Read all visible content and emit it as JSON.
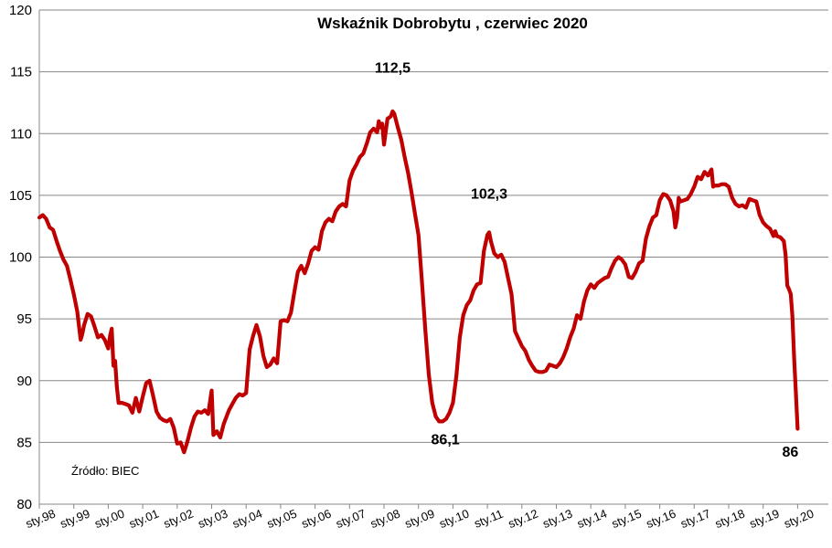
{
  "chart_data": {
    "type": "line",
    "title": "Wskaźnik Dobrobytu , czerwiec 2020",
    "xlabel": "",
    "ylabel": "",
    "ylim": [
      80,
      120
    ],
    "yticks": [
      "80",
      "85",
      "90",
      "95",
      "100",
      "105",
      "110",
      "115",
      "120"
    ],
    "xticks": [
      "sty.98",
      "sty.99",
      "sty.00",
      "sty.01",
      "sty.02",
      "sty.03",
      "sty.04",
      "sty.05",
      "sty.06",
      "sty.07",
      "sty.08",
      "sty.09",
      "sty.10",
      "sty.11",
      "sty.12",
      "sty.13",
      "sty.14",
      "sty.15",
      "sty.16",
      "sty.17",
      "sty.18",
      "sty.19",
      "sty.20"
    ],
    "grid": true,
    "legend": "none",
    "series": [
      {
        "name": "Wskaźnik Dobrobytu",
        "color": "#C00000",
        "points": [
          [
            0.0,
            103.2
          ],
          [
            0.1,
            103.4
          ],
          [
            0.2,
            103.1
          ],
          [
            0.3,
            102.4
          ],
          [
            0.4,
            102.2
          ],
          [
            0.5,
            101.3
          ],
          [
            0.6,
            100.5
          ],
          [
            0.7,
            99.8
          ],
          [
            0.8,
            99.3
          ],
          [
            0.9,
            98.2
          ],
          [
            1.0,
            97.0
          ],
          [
            1.1,
            95.6
          ],
          [
            1.2,
            93.3
          ],
          [
            1.25,
            93.8
          ],
          [
            1.3,
            94.5
          ],
          [
            1.4,
            95.4
          ],
          [
            1.5,
            95.2
          ],
          [
            1.6,
            94.4
          ],
          [
            1.7,
            93.5
          ],
          [
            1.8,
            93.7
          ],
          [
            1.9,
            93.3
          ],
          [
            2.0,
            92.6
          ],
          [
            2.05,
            93.6
          ],
          [
            2.1,
            94.2
          ],
          [
            2.15,
            91.2
          ],
          [
            2.2,
            91.6
          ],
          [
            2.25,
            89.5
          ],
          [
            2.3,
            88.2
          ],
          [
            2.4,
            88.2
          ],
          [
            2.5,
            88.1
          ],
          [
            2.6,
            88.0
          ],
          [
            2.7,
            87.4
          ],
          [
            2.8,
            88.6
          ],
          [
            2.9,
            87.5
          ],
          [
            3.0,
            88.7
          ],
          [
            3.1,
            89.8
          ],
          [
            3.2,
            90.0
          ],
          [
            3.3,
            88.8
          ],
          [
            3.4,
            87.5
          ],
          [
            3.5,
            87.0
          ],
          [
            3.6,
            86.8
          ],
          [
            3.7,
            86.7
          ],
          [
            3.8,
            86.9
          ],
          [
            3.9,
            86.2
          ],
          [
            4.0,
            84.9
          ],
          [
            4.1,
            85.0
          ],
          [
            4.2,
            84.2
          ],
          [
            4.3,
            85.1
          ],
          [
            4.4,
            86.2
          ],
          [
            4.5,
            87.1
          ],
          [
            4.6,
            87.5
          ],
          [
            4.7,
            87.4
          ],
          [
            4.8,
            87.6
          ],
          [
            4.9,
            87.3
          ],
          [
            5.0,
            89.2
          ],
          [
            5.05,
            85.6
          ],
          [
            5.15,
            85.9
          ],
          [
            5.25,
            85.4
          ],
          [
            5.35,
            86.5
          ],
          [
            5.5,
            87.6
          ],
          [
            5.6,
            88.1
          ],
          [
            5.7,
            88.6
          ],
          [
            5.8,
            88.9
          ],
          [
            5.9,
            88.8
          ],
          [
            6.0,
            89.0
          ],
          [
            6.1,
            92.5
          ],
          [
            6.2,
            93.6
          ],
          [
            6.3,
            94.5
          ],
          [
            6.4,
            93.6
          ],
          [
            6.5,
            92.0
          ],
          [
            6.6,
            91.1
          ],
          [
            6.7,
            91.3
          ],
          [
            6.8,
            91.8
          ],
          [
            6.9,
            91.4
          ],
          [
            7.0,
            94.8
          ],
          [
            7.1,
            94.9
          ],
          [
            7.2,
            94.8
          ],
          [
            7.3,
            95.5
          ],
          [
            7.4,
            97.2
          ],
          [
            7.5,
            98.8
          ],
          [
            7.6,
            99.3
          ],
          [
            7.7,
            98.7
          ],
          [
            7.8,
            99.5
          ],
          [
            7.9,
            100.5
          ],
          [
            8.0,
            100.8
          ],
          [
            8.1,
            100.6
          ],
          [
            8.2,
            102.1
          ],
          [
            8.3,
            102.8
          ],
          [
            8.4,
            103.1
          ],
          [
            8.5,
            102.9
          ],
          [
            8.6,
            103.7
          ],
          [
            8.7,
            104.1
          ],
          [
            8.8,
            104.3
          ],
          [
            8.9,
            104.1
          ],
          [
            9.0,
            106.2
          ],
          [
            9.1,
            107.0
          ],
          [
            9.2,
            107.5
          ],
          [
            9.3,
            108.1
          ],
          [
            9.4,
            108.4
          ],
          [
            9.5,
            109.2
          ],
          [
            9.6,
            110.1
          ],
          [
            9.7,
            110.4
          ],
          [
            9.8,
            110.1
          ],
          [
            9.85,
            111.0
          ],
          [
            9.9,
            110.5
          ],
          [
            9.95,
            110.8
          ],
          [
            10.0,
            109.1
          ],
          [
            10.1,
            111.2
          ],
          [
            10.2,
            111.4
          ],
          [
            10.25,
            111.8
          ],
          [
            10.3,
            111.6
          ],
          [
            10.4,
            110.5
          ],
          [
            10.5,
            109.5
          ],
          [
            10.6,
            108.1
          ],
          [
            10.7,
            106.8
          ],
          [
            10.8,
            105.2
          ],
          [
            10.9,
            103.5
          ],
          [
            11.0,
            101.8
          ],
          [
            11.1,
            98.0
          ],
          [
            11.2,
            94.1
          ],
          [
            11.3,
            90.5
          ],
          [
            11.4,
            88.2
          ],
          [
            11.5,
            87.1
          ],
          [
            11.6,
            86.7
          ],
          [
            11.7,
            86.7
          ],
          [
            11.8,
            86.9
          ],
          [
            11.9,
            87.4
          ],
          [
            12.0,
            88.2
          ],
          [
            12.1,
            90.4
          ],
          [
            12.2,
            93.5
          ],
          [
            12.3,
            95.3
          ],
          [
            12.4,
            96.1
          ],
          [
            12.5,
            96.5
          ],
          [
            12.6,
            97.3
          ],
          [
            12.7,
            97.8
          ],
          [
            12.8,
            97.9
          ],
          [
            12.9,
            100.5
          ],
          [
            13.0,
            101.8
          ],
          [
            13.05,
            102.0
          ],
          [
            13.1,
            101.3
          ],
          [
            13.2,
            100.3
          ],
          [
            13.3,
            100.0
          ],
          [
            13.4,
            100.2
          ],
          [
            13.5,
            99.6
          ],
          [
            13.6,
            98.3
          ],
          [
            13.7,
            97.0
          ],
          [
            13.8,
            94.0
          ],
          [
            13.9,
            93.4
          ],
          [
            14.0,
            92.8
          ],
          [
            14.1,
            92.4
          ],
          [
            14.2,
            91.7
          ],
          [
            14.3,
            91.2
          ],
          [
            14.4,
            90.8
          ],
          [
            14.5,
            90.7
          ],
          [
            14.6,
            90.7
          ],
          [
            14.7,
            90.8
          ],
          [
            14.8,
            91.3
          ],
          [
            14.9,
            91.2
          ],
          [
            15.0,
            91.1
          ],
          [
            15.1,
            91.4
          ],
          [
            15.2,
            91.9
          ],
          [
            15.3,
            92.6
          ],
          [
            15.4,
            93.5
          ],
          [
            15.5,
            94.2
          ],
          [
            15.6,
            95.3
          ],
          [
            15.7,
            95.0
          ],
          [
            15.8,
            96.4
          ],
          [
            15.9,
            97.3
          ],
          [
            16.0,
            97.8
          ],
          [
            16.1,
            97.5
          ],
          [
            16.2,
            97.9
          ],
          [
            16.3,
            98.1
          ],
          [
            16.4,
            98.3
          ],
          [
            16.5,
            98.4
          ],
          [
            16.6,
            99.1
          ],
          [
            16.7,
            99.7
          ],
          [
            16.8,
            100.0
          ],
          [
            16.9,
            99.8
          ],
          [
            17.0,
            99.4
          ],
          [
            17.1,
            98.4
          ],
          [
            17.2,
            98.3
          ],
          [
            17.3,
            98.8
          ],
          [
            17.4,
            99.5
          ],
          [
            17.5,
            99.7
          ],
          [
            17.6,
            101.5
          ],
          [
            17.7,
            102.5
          ],
          [
            17.8,
            103.2
          ],
          [
            17.9,
            103.4
          ],
          [
            18.0,
            104.6
          ],
          [
            18.1,
            105.1
          ],
          [
            18.2,
            105.0
          ],
          [
            18.3,
            104.6
          ],
          [
            18.4,
            103.7
          ],
          [
            18.45,
            102.4
          ],
          [
            18.5,
            103.1
          ],
          [
            18.55,
            104.8
          ],
          [
            18.6,
            104.5
          ],
          [
            18.7,
            104.6
          ],
          [
            18.8,
            104.7
          ],
          [
            18.9,
            105.1
          ],
          [
            19.0,
            105.7
          ],
          [
            19.1,
            106.5
          ],
          [
            19.2,
            106.3
          ],
          [
            19.3,
            106.9
          ],
          [
            19.4,
            106.6
          ],
          [
            19.5,
            107.1
          ],
          [
            19.55,
            105.7
          ],
          [
            19.6,
            105.8
          ],
          [
            19.7,
            105.8
          ],
          [
            19.8,
            105.9
          ],
          [
            19.9,
            105.9
          ],
          [
            20.0,
            105.7
          ],
          [
            20.1,
            104.8
          ],
          [
            20.2,
            104.3
          ],
          [
            20.3,
            104.1
          ],
          [
            20.4,
            104.2
          ],
          [
            20.5,
            104.0
          ],
          [
            20.6,
            104.7
          ],
          [
            20.7,
            104.6
          ],
          [
            20.8,
            104.5
          ],
          [
            20.9,
            103.4
          ],
          [
            21.0,
            102.8
          ],
          [
            21.1,
            102.5
          ],
          [
            21.2,
            102.3
          ],
          [
            21.3,
            101.7
          ],
          [
            21.35,
            102.1
          ],
          [
            21.4,
            101.7
          ],
          [
            21.5,
            101.6
          ],
          [
            21.6,
            101.3
          ],
          [
            21.65,
            100.2
          ],
          [
            21.7,
            97.7
          ],
          [
            21.75,
            97.4
          ],
          [
            21.8,
            97.0
          ],
          [
            21.85,
            95.2
          ],
          [
            21.9,
            91.8
          ],
          [
            21.95,
            89.0
          ],
          [
            22.0,
            86.1
          ]
        ]
      }
    ],
    "annotations": [
      {
        "text": "112,5",
        "x": 10.25,
        "y": 112.5
      },
      {
        "text": "102,3",
        "x": 13.05,
        "y": 102.3
      },
      {
        "text": "86,1",
        "x": 11.7,
        "y": 86.1
      },
      {
        "text": "86",
        "x": 22.0,
        "y": 86.0
      }
    ],
    "source": "Źródło: BIEC"
  }
}
